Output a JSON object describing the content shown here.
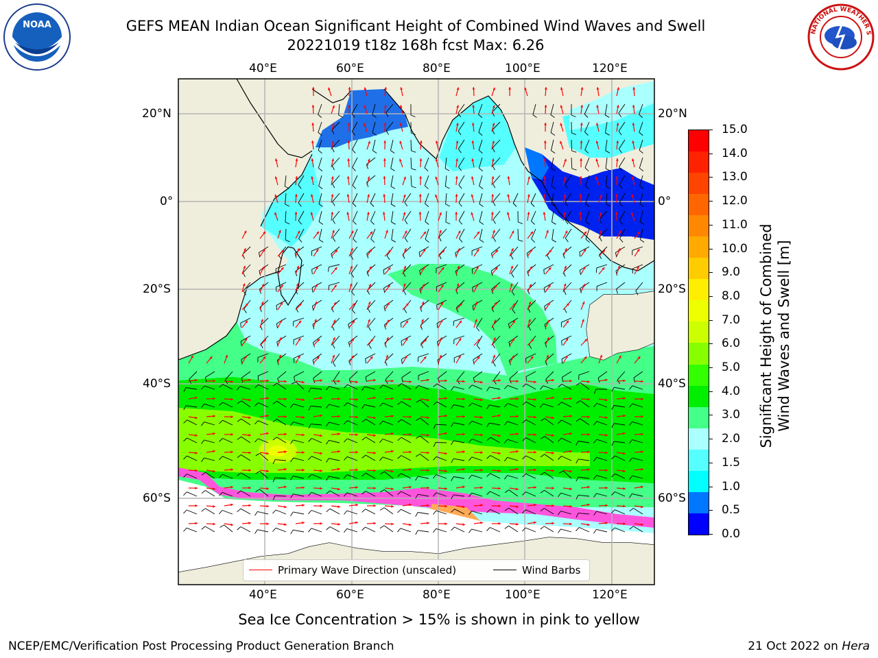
{
  "header": {
    "title_line1": "GEFS MEAN Indian Ocean Significant Height of Combined Wind Waves and Swell",
    "title_line2": "20221019 t18z 168h fcst   Max: 6.26"
  },
  "logos": {
    "left": {
      "name": "noaa-logo",
      "text": "NOAA"
    },
    "right": {
      "name": "nws-logo",
      "text": "NATIONAL WEATHER SERVICE"
    }
  },
  "map": {
    "lon_ticks_top": [
      "40°E",
      "60°E",
      "80°E",
      "100°E",
      "120°E"
    ],
    "lon_ticks_bottom": [
      "40°E",
      "60°E",
      "80°E",
      "100°E",
      "120°E"
    ],
    "lat_ticks_left": [
      "20°N",
      "0°",
      "20°S",
      "40°S",
      "60°S"
    ],
    "lat_ticks_right": [
      "20°N",
      "0°",
      "20°S",
      "40°S",
      "60°S"
    ],
    "legend": {
      "primary_wave": "Primary Wave Direction (unscaled)",
      "wind_barbs": "Wind Barbs",
      "primary_wave_color": "#ff0000",
      "wind_barbs_color": "#000000"
    },
    "land_color": "#efeedc"
  },
  "colorbar": {
    "label_line1": "Significant Height of Combined",
    "label_line2": "Wind Waves and Swell [m]",
    "ticks": [
      "15.0",
      "14.0",
      "13.0",
      "12.0",
      "11.0",
      "10.0",
      "9.0",
      "8.0",
      "7.0",
      "6.0",
      "5.0",
      "4.0",
      "3.0",
      "2.0",
      "1.5",
      "1.0",
      "0.5",
      "0.0"
    ],
    "colors": [
      "#ff0000",
      "#ff2200",
      "#ff4400",
      "#ff6600",
      "#ff8800",
      "#ffaa00",
      "#ffcc00",
      "#ffee00",
      "#eeff00",
      "#ccff00",
      "#88ff00",
      "#33ff00",
      "#00ee00",
      "#44ff88",
      "#aaffff",
      "#55ffff",
      "#00ffff",
      "#0077ff",
      "#0000ff"
    ]
  },
  "footer": {
    "note": "Sea Ice Concentration > 15% is shown in pink to yellow",
    "left": "NCEP/EMC/Verification Post Processing Product Generation Branch",
    "right_prefix": "21 Oct 2022 on ",
    "right_host": "Hera"
  }
}
